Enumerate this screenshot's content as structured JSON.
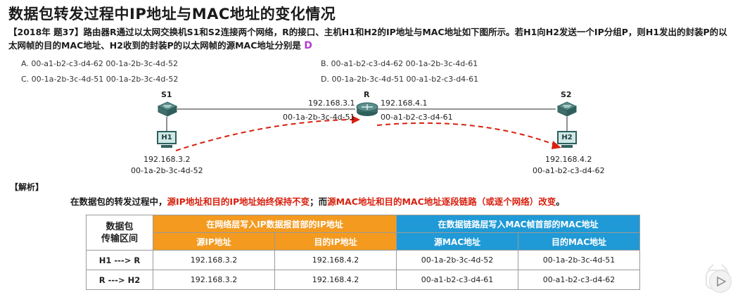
{
  "title": "数据包转发过程中IP地址与MAC地址的变化情况",
  "question": {
    "prefix": "【2018年 题37】路由器R通过以太网交换机S1和S2连接两个网络，R的接口、主机H1和H2的IP地址与MAC地址如下图所示。若H1向H2发送一个IP分组P，则H1发出的封装P的以太网帧的目的MAC地址、H2收到的封装P的以太网帧的源MAC地址分别是",
    "answer": "D"
  },
  "options": {
    "a": "A. 00-a1-b2-c3-d4-62    00-1a-2b-3c-4d-52",
    "b": "B. 00-a1-b2-c3-d4-62    00-1a-2b-3c-4d-61",
    "c": "C. 00-1a-2b-3c-4d-51    00-1a-2b-3c-4d-52",
    "d": "D. 00-1a-2b-3c-4d-51    00-a1-b2-c3-d4-61"
  },
  "diagram": {
    "s1": "S1",
    "s2": "S2",
    "r": "R",
    "h1": "H1",
    "h2": "H2",
    "r_left_ip": "192.168.3.1",
    "r_left_mac": "00-1a-2b-3c-4d-51",
    "r_right_ip": "192.168.4.1",
    "r_right_mac": "00-a1-b2-c3-d4-61",
    "h1_ip": "192.168.3.2",
    "h1_mac": "00-1a-2b-3c-4d-52",
    "h2_ip": "192.168.4.2",
    "h2_mac": "00-a1-b2-c3-d4-62",
    "arrow_color": "#d8200f",
    "device_color": "#2f5f5c"
  },
  "analysis": {
    "label": "【解析】",
    "s1": "在数据包的转发过程中，",
    "s2": "源IP地址和目的IP地址始终保持不变",
    "s3": "；而",
    "s4": "源MAC地址和目的MAC地址逐段链路（或逐个网络）改变",
    "s5": "。"
  },
  "table": {
    "corner": "数据包\n传输区间",
    "group_ip": "在网络层写入IP数据报首部的IP地址",
    "group_mac": "在数据链路层写入MAC帧首部的MAC地址",
    "col_src_ip": "源IP地址",
    "col_dst_ip": "目的IP地址",
    "col_src_mac": "源MAC地址",
    "col_dst_mac": "目的MAC地址",
    "rows": [
      {
        "label": "H1 ---> R",
        "src_ip": "192.168.3.2",
        "dst_ip": "192.168.4.2",
        "src_mac": "00-1a-2b-3c-4d-52",
        "dst_mac": "00-1a-2b-3c-4d-51"
      },
      {
        "label": "R  ---> H2",
        "src_ip": "192.168.3.2",
        "dst_ip": "192.168.4.2",
        "src_mac": "00-a1-b2-c3-d4-61",
        "dst_mac": "00-a1-b2-c3-d4-62"
      }
    ],
    "orange": "#f39a1f",
    "blue": "#1f9ad6"
  }
}
